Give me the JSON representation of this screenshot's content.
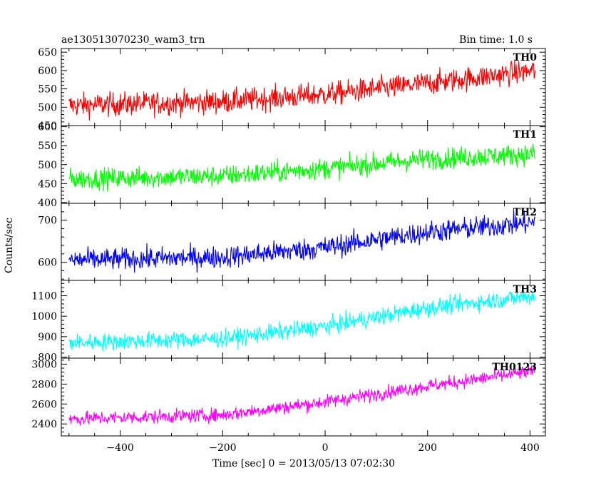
{
  "header": {
    "title": "ae130513070230_wam3_trn",
    "bin_time": "Bin time: 1.0 s"
  },
  "chart_data": {
    "type": "line",
    "x_range": [
      -515,
      430
    ],
    "x_ticks": [
      -400,
      -200,
      0,
      200,
      400
    ],
    "x_tick_labels": [
      "−400",
      "−200",
      "0",
      "200",
      "400"
    ],
    "x_data_range": [
      -500,
      410
    ],
    "xlabel": "Time [sec] 0 = 2013/05/13 07:02:30",
    "ylabel": "Counts/sec",
    "panels": [
      {
        "name": "TH0",
        "color": "#ff0000",
        "ylim": [
          450,
          660
        ],
        "yticks": [
          450,
          500,
          550,
          600,
          650
        ],
        "trend": [
          [
            -500,
            505
          ],
          [
            -200,
            515
          ],
          [
            0,
            535
          ],
          [
            200,
            565
          ],
          [
            410,
            600
          ]
        ],
        "noise": 42
      },
      {
        "name": "TH1",
        "color": "#00ff00",
        "ylim": [
          398,
          603
        ],
        "yticks": [
          400,
          450,
          500,
          550,
          600
        ],
        "trend": [
          [
            -500,
            462
          ],
          [
            -200,
            470
          ],
          [
            0,
            490
          ],
          [
            200,
            515
          ],
          [
            410,
            528
          ]
        ],
        "noise": 36
      },
      {
        "name": "TH2",
        "color": "#0000ff",
        "ylim": [
          557,
          740
        ],
        "yticks": [
          600,
          700
        ],
        "trend": [
          [
            -500,
            605
          ],
          [
            -200,
            612
          ],
          [
            0,
            635
          ],
          [
            200,
            672
          ],
          [
            410,
            695
          ]
        ],
        "noise": 34
      },
      {
        "name": "TH3",
        "color": "#00ffff",
        "ylim": [
          795,
          1175
        ],
        "yticks": [
          800,
          900,
          1000,
          1100
        ],
        "trend": [
          [
            -500,
            870
          ],
          [
            -200,
            890
          ],
          [
            0,
            950
          ],
          [
            200,
            1040
          ],
          [
            410,
            1100
          ]
        ],
        "noise": 55
      },
      {
        "name": "TH0123",
        "color": "#ff00ff",
        "ylim": [
          2280,
          3060
        ],
        "yticks": [
          2400,
          2600,
          2800,
          3000
        ],
        "trend": [
          [
            -500,
            2450
          ],
          [
            -200,
            2490
          ],
          [
            0,
            2620
          ],
          [
            200,
            2780
          ],
          [
            410,
            2930
          ]
        ],
        "noise": 90
      }
    ],
    "grid": false,
    "legend": "none"
  }
}
